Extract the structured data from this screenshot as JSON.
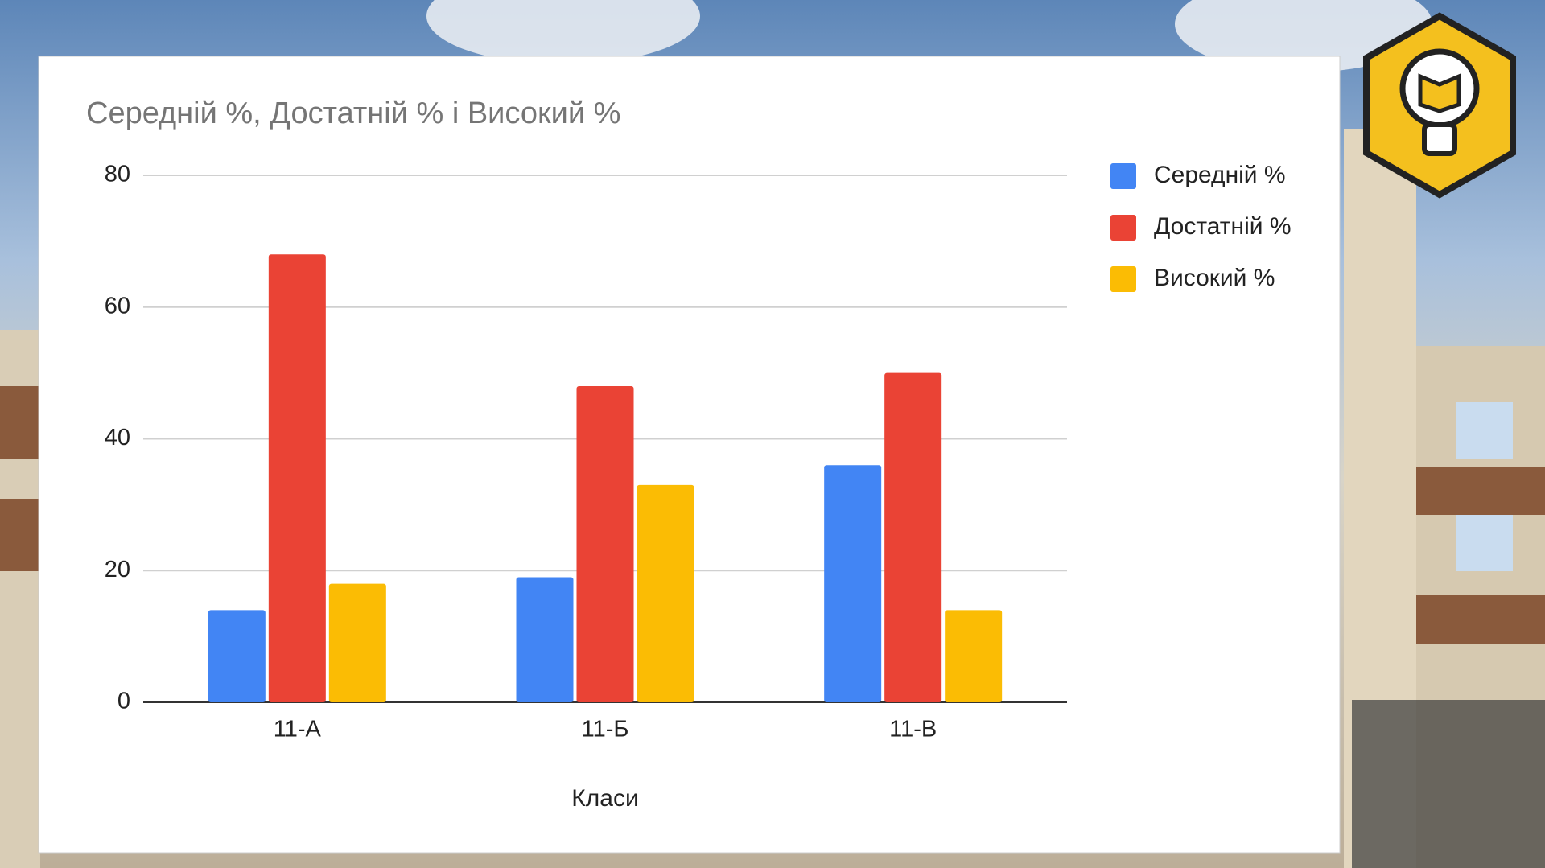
{
  "chart_data": {
    "type": "bar",
    "title": "Середній %, Достатній % і Високий %",
    "x_label": "Класи",
    "categories": [
      "11-А",
      "11-Б",
      "11-В"
    ],
    "series": [
      {
        "name": "Середній %",
        "color": "#4285f4",
        "values": [
          14,
          19,
          36
        ]
      },
      {
        "name": "Достатній %",
        "color": "#ea4335",
        "values": [
          68,
          48,
          50
        ]
      },
      {
        "name": "Високий %",
        "color": "#fbbc04",
        "values": [
          18,
          33,
          14
        ]
      }
    ],
    "ylim": [
      0,
      80
    ],
    "yticks": [
      0,
      20,
      40,
      60,
      80
    ],
    "grid": true,
    "legend": "right"
  }
}
